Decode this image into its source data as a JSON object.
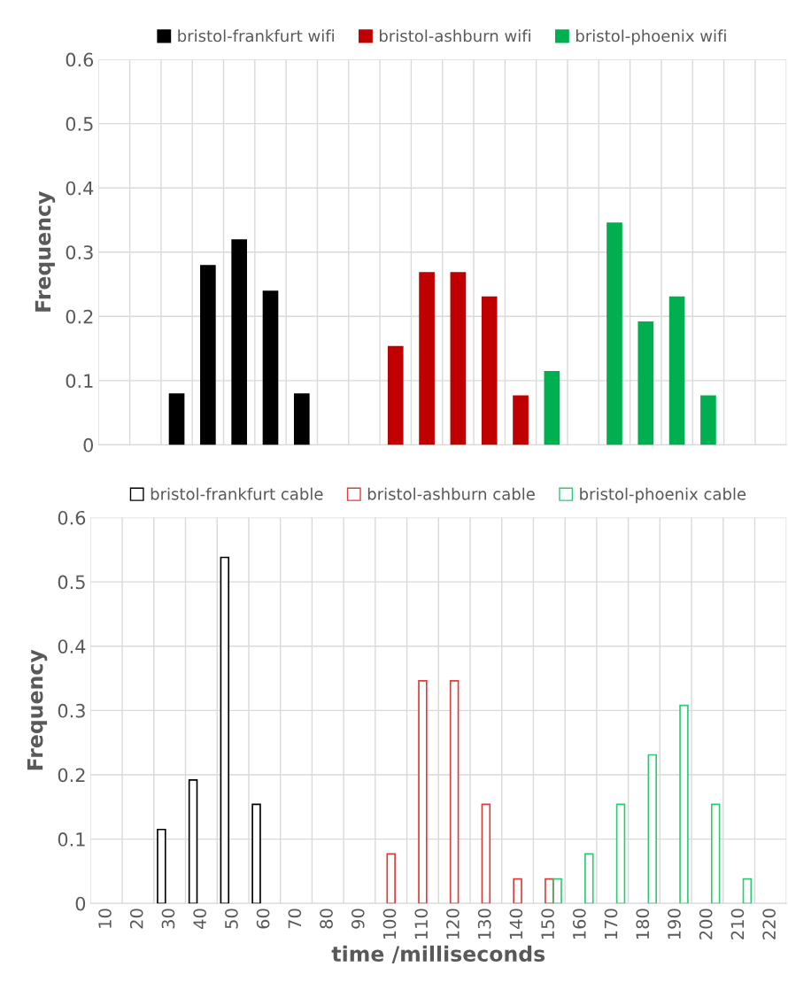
{
  "chart_data": [
    {
      "type": "bar",
      "stacked": true,
      "ylabel": "Frequency",
      "categories": [
        "10",
        "20",
        "30",
        "40",
        "50",
        "60",
        "70",
        "80",
        "90",
        "100",
        "110",
        "120",
        "130",
        "140",
        "150",
        "160",
        "170",
        "180",
        "190",
        "200",
        "210",
        "220"
      ],
      "ylim": [
        0,
        0.6
      ],
      "yticks": [
        0,
        0.1,
        0.2,
        0.3,
        0.4,
        0.5,
        0.6
      ],
      "grid": true,
      "legend": "top",
      "tick_labels": "y",
      "series": [
        {
          "name": "bristol-frankfurt wifi",
          "color": "#000000",
          "values": [
            null,
            null,
            0.08,
            0.28,
            0.32,
            0.24,
            0.08,
            null,
            null,
            null,
            null,
            null,
            null,
            null,
            null,
            null,
            null,
            null,
            null,
            null,
            null,
            null
          ]
        },
        {
          "name": "bristol-ashburn wifi",
          "color": "#c00000",
          "values": [
            null,
            null,
            null,
            null,
            null,
            null,
            null,
            null,
            null,
            0.154,
            0.269,
            0.269,
            0.231,
            0.077,
            null,
            null,
            null,
            null,
            null,
            null,
            null,
            null
          ]
        },
        {
          "name": "bristol-phoenix wifi",
          "color": "#00b050",
          "values": [
            null,
            null,
            null,
            null,
            null,
            null,
            null,
            null,
            null,
            null,
            null,
            null,
            null,
            null,
            0.115,
            null,
            0.346,
            0.192,
            0.231,
            0.077,
            null,
            null
          ]
        }
      ]
    },
    {
      "type": "bar",
      "ylabel": "Frequency",
      "xlabel": "time /milliseconds",
      "categories": [
        "10",
        "20",
        "30",
        "40",
        "50",
        "60",
        "70",
        "80",
        "90",
        "100",
        "110",
        "120",
        "130",
        "140",
        "150",
        "160",
        "170",
        "180",
        "190",
        "200",
        "210",
        "220"
      ],
      "ylim": [
        0,
        0.6
      ],
      "yticks": [
        0,
        0.1,
        0.2,
        0.3,
        0.4,
        0.5,
        0.6
      ],
      "grid": true,
      "legend": "top",
      "series": [
        {
          "name": "bristol-frankfurt cable",
          "color": "#000000",
          "values": [
            null,
            null,
            0.115,
            0.192,
            0.538,
            0.154,
            null,
            null,
            null,
            null,
            null,
            null,
            null,
            null,
            null,
            null,
            null,
            null,
            null,
            null,
            null,
            null
          ]
        },
        {
          "name": "bristol-ashburn cable",
          "color": "#e03c3c",
          "values": [
            null,
            null,
            null,
            null,
            null,
            null,
            null,
            null,
            null,
            0.077,
            0.346,
            0.346,
            0.154,
            0.038,
            0.038,
            null,
            null,
            null,
            null,
            null,
            null,
            null
          ]
        },
        {
          "name": "bristol-phoenix cable",
          "color": "#2ecc71",
          "values": [
            null,
            null,
            null,
            null,
            null,
            null,
            null,
            null,
            null,
            null,
            null,
            null,
            null,
            null,
            0.038,
            0.077,
            0.154,
            0.231,
            0.308,
            0.154,
            0.038,
            null
          ]
        }
      ]
    }
  ]
}
